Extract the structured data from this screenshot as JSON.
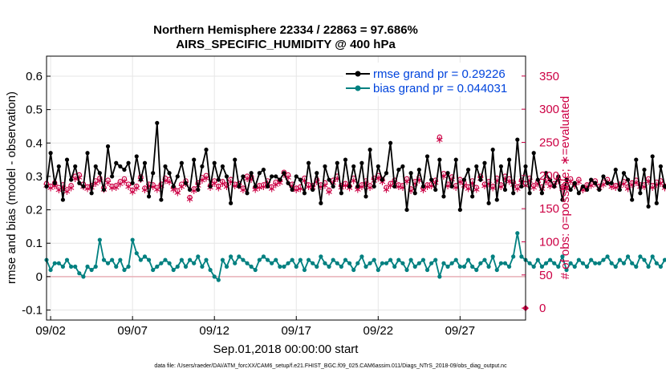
{
  "chart_data": {
    "type": "line",
    "title": "Northern Hemisphere 22334 / 22863 = 97.686%",
    "subtitle": "AIRS_SPECIFIC_HUMIDITY @ 400 hPa",
    "xlabel": "Sep.01,2018 00:00:00 start",
    "ylabel": "rmse and bias (model - observation)",
    "ylabel_right": "# of obs: o=possible; ∗=evaluated",
    "footer": "data file: /Users/raeder/DAI/ATM_forcXX/CAM6_setup/f.e21.FHIST_BGC.f09_025.CAM6assim.011/Diags_NTrS_2018-09/obs_diag_output.nc",
    "xlim": [
      1.75,
      31.0
    ],
    "ylim": [
      -0.13,
      0.66
    ],
    "ylim_right": [
      -18,
      380
    ],
    "grid": true,
    "x_tick_labels": [
      "09/02",
      "09/07",
      "09/12",
      "09/17",
      "09/22",
      "09/27"
    ],
    "y_tick_labels": [
      "-0.1",
      "0",
      "0.1",
      "0.2",
      "0.3",
      "0.4",
      "0.5",
      "0.6"
    ],
    "y_right_tick_labels": [
      "0",
      "50",
      "100",
      "150",
      "200",
      "250",
      "300",
      "350"
    ],
    "legend": [
      {
        "label": "rmse grand pr = 0.29226",
        "color": "#000000",
        "marker": "filled-circle"
      },
      {
        "label": "bias grand pr = 0.044031",
        "color": "#008080",
        "marker": "filled-circle"
      }
    ],
    "colors": {
      "rmse": "#000000",
      "bias": "#008080",
      "obs": "#cc0044",
      "grid": "#e6e6e6",
      "zero": "#e8b0b8"
    },
    "x_start": 1.75,
    "x_step": 0.25,
    "series": [
      {
        "name": "rmse",
        "values": [
          0.27,
          0.37,
          0.28,
          0.33,
          0.23,
          0.35,
          0.29,
          0.33,
          0.28,
          0.27,
          0.37,
          0.25,
          0.33,
          0.31,
          0.26,
          0.39,
          0.3,
          0.34,
          0.33,
          0.32,
          0.34,
          0.28,
          0.36,
          0.29,
          0.34,
          0.24,
          0.31,
          0.46,
          0.23,
          0.33,
          0.31,
          0.27,
          0.3,
          0.34,
          0.28,
          0.26,
          0.35,
          0.26,
          0.33,
          0.38,
          0.27,
          0.34,
          0.29,
          0.33,
          0.3,
          0.22,
          0.35,
          0.27,
          0.3,
          0.25,
          0.31,
          0.27,
          0.31,
          0.32,
          0.27,
          0.3,
          0.3,
          0.29,
          0.31,
          0.28,
          0.26,
          0.3,
          0.29,
          0.25,
          0.34,
          0.26,
          0.31,
          0.22,
          0.33,
          0.29,
          0.27,
          0.34,
          0.25,
          0.35,
          0.27,
          0.33,
          0.27,
          0.34,
          0.24,
          0.38,
          0.27,
          0.33,
          0.29,
          0.31,
          0.4,
          0.27,
          0.32,
          0.33,
          0.2,
          0.31,
          0.25,
          0.32,
          0.27,
          0.36,
          0.29,
          0.26,
          0.35,
          0.24,
          0.31,
          0.27,
          0.35,
          0.2,
          0.29,
          0.32,
          0.24,
          0.33,
          0.29,
          0.34,
          0.22,
          0.38,
          0.23,
          0.33,
          0.26,
          0.35,
          0.25,
          0.41,
          0.27,
          0.33,
          0.25,
          0.37,
          0.29,
          0.25,
          0.31,
          0.29,
          0.27,
          0.3,
          0.23,
          0.29,
          0.26,
          0.28,
          0.25,
          0.27,
          0.26,
          0.29,
          0.28,
          0.26,
          0.3,
          0.28,
          0.28,
          0.32,
          0.26,
          0.31,
          0.29,
          0.23,
          0.35,
          0.25,
          0.32,
          0.21,
          0.36,
          0.22,
          0.33,
          0.27,
          0.25,
          0.3,
          0.24,
          0.32,
          0.28,
          0.26,
          0.29,
          0.25,
          0.3,
          0.28,
          0.23,
          0.28,
          0.26,
          0.27,
          0.24,
          0.25,
          0.28,
          0.3,
          0.26,
          0.29,
          0.24,
          0.27,
          0.29
        ]
      },
      {
        "name": "bias",
        "values": [
          0.05,
          0.02,
          0.04,
          0.04,
          0.03,
          0.05,
          0.03,
          0.03,
          0.01,
          0.0,
          0.03,
          0.02,
          0.03,
          0.11,
          0.05,
          0.04,
          0.05,
          0.03,
          0.05,
          0.02,
          0.03,
          0.11,
          0.07,
          0.05,
          0.06,
          0.05,
          0.02,
          0.03,
          0.04,
          0.05,
          0.04,
          0.02,
          0.03,
          0.05,
          0.03,
          0.05,
          0.04,
          0.06,
          0.03,
          0.05,
          0.02,
          0.0,
          -0.01,
          0.05,
          0.03,
          0.06,
          0.04,
          0.06,
          0.05,
          0.04,
          0.03,
          0.02,
          0.05,
          0.06,
          0.05,
          0.04,
          0.05,
          0.03,
          0.03,
          0.04,
          0.05,
          0.03,
          0.05,
          0.02,
          0.05,
          0.04,
          0.03,
          0.06,
          0.04,
          0.03,
          0.05,
          0.04,
          0.03,
          0.05,
          0.04,
          0.02,
          0.04,
          0.06,
          0.03,
          0.04,
          0.05,
          0.02,
          0.04,
          0.04,
          0.05,
          0.03,
          0.05,
          0.04,
          0.02,
          0.05,
          0.03,
          0.04,
          0.05,
          0.02,
          0.04,
          0.05,
          0.0,
          0.04,
          0.03,
          0.04,
          0.05,
          0.03,
          0.03,
          0.05,
          0.03,
          0.02,
          0.04,
          0.05,
          0.03,
          0.06,
          0.02,
          0.04,
          0.04,
          0.03,
          0.06,
          0.13,
          0.06,
          0.05,
          0.04,
          0.03,
          0.05,
          0.03,
          0.04,
          0.05,
          0.04,
          0.03,
          0.06,
          0.02,
          0.04,
          0.03,
          0.05,
          0.04,
          0.03,
          0.05,
          0.04,
          0.04,
          0.05,
          0.06,
          0.04,
          0.03,
          0.05,
          0.04,
          0.06,
          0.04,
          0.03,
          0.06,
          0.05,
          0.03,
          0.06,
          0.04,
          0.03,
          0.05,
          0.04,
          0.02,
          0.05,
          0.03,
          0.04,
          0.03,
          0.04,
          0.03,
          0.05,
          0.02,
          0.04,
          0.03,
          0.03,
          0.04,
          0.03,
          0.02,
          0.0,
          0.03,
          -0.02,
          0.03,
          0.04
        ]
      },
      {
        "name": "possible_obs",
        "values": [
          188,
          184,
          189,
          182,
          186,
          179,
          185,
          199,
          201,
          187,
          183,
          185,
          192,
          196,
          182,
          193,
          184,
          185,
          191,
          195,
          187,
          178,
          184,
          198,
          181,
          187,
          186,
          182,
          187,
          196,
          194,
          182,
          177,
          187,
          192,
          167,
          180,
          189,
          197,
          200,
          185,
          192,
          184,
          191,
          186,
          194,
          187,
          188,
          181,
          199,
          198,
          182,
          185,
          186,
          192,
          183,
          190,
          193,
          205,
          201,
          187,
          181,
          183,
          196,
          186,
          185,
          194,
          186,
          189,
          178,
          193,
          199,
          185,
          188,
          184,
          196,
          182,
          186,
          192,
          185,
          196,
          200,
          194,
          182,
          188,
          193,
          186,
          185,
          195,
          180,
          191,
          197,
          181,
          186,
          187,
          193,
          258,
          203,
          187,
          198,
          185,
          194,
          189,
          183,
          192,
          182,
          199,
          187,
          191,
          184,
          196,
          186,
          199,
          195,
          190,
          183,
          193,
          188,
          196,
          185,
          191,
          183,
          194,
          187,
          188,
          196,
          183,
          185,
          195,
          187,
          194,
          181,
          186,
          188,
          192,
          184,
          190,
          194,
          186,
          185,
          187,
          191,
          183,
          189,
          193,
          186,
          186,
          195,
          185,
          190,
          192,
          184,
          188,
          185,
          163,
          172,
          193,
          169,
          186,
          189,
          180,
          187,
          197,
          193,
          186,
          185,
          194,
          189,
          183,
          183,
          185,
          192,
          188,
          196,
          186,
          184,
          180,
          186,
          182,
          185,
          190
        ]
      },
      {
        "name": "evaluated_obs",
        "values": [
          186,
          182,
          185,
          179,
          183,
          177,
          182,
          196,
          198,
          184,
          181,
          183,
          189,
          193,
          180,
          190,
          182,
          183,
          188,
          192,
          184,
          176,
          182,
          195,
          179,
          185,
          184,
          180,
          185,
          193,
          191,
          180,
          175,
          184,
          189,
          165,
          178,
          186,
          194,
          197,
          183,
          189,
          182,
          189,
          184,
          191,
          185,
          185,
          179,
          196,
          195,
          180,
          183,
          184,
          189,
          181,
          187,
          190,
          202,
          198,
          185,
          179,
          181,
          193,
          184,
          183,
          191,
          184,
          186,
          176,
          190,
          196,
          183,
          186,
          182,
          193,
          180,
          184,
          189,
          183,
          193,
          197,
          191,
          180,
          186,
          190,
          184,
          183,
          192,
          178,
          189,
          194,
          179,
          184,
          185,
          190,
          255,
          200,
          185,
          195,
          183,
          191,
          186,
          181,
          189,
          180,
          196,
          185,
          188,
          182,
          193,
          184,
          196,
          192,
          187,
          181,
          190,
          186,
          193,
          183,
          188,
          181,
          191,
          185,
          186,
          193,
          181,
          183,
          192,
          185,
          191,
          179,
          184,
          186,
          189,
          182,
          187,
          191,
          184,
          183,
          185,
          188,
          181,
          187,
          190,
          184,
          184,
          192,
          183,
          187,
          189,
          182,
          186,
          183,
          161,
          170,
          190,
          167,
          184,
          187,
          178,
          185,
          194,
          190,
          184,
          183,
          191,
          186,
          181,
          181,
          183,
          189,
          186,
          193,
          184,
          182,
          178,
          184,
          180,
          183,
          187
        ]
      }
    ]
  }
}
